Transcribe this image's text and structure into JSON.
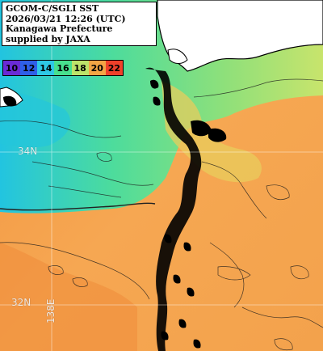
{
  "info": {
    "line1": "GCOM-C/SGLI SST",
    "line2": "2026/03/21 12:26 (UTC)",
    "line3": "Kanagawa Prefecture",
    "line4": "supplied by JAXA"
  },
  "legend": {
    "items": [
      {
        "label": "10",
        "color": "#6a2bd6"
      },
      {
        "label": "12",
        "color": "#2f5fe8"
      },
      {
        "label": "14",
        "color": "#2ec8e6"
      },
      {
        "label": "16",
        "color": "#48e08e"
      },
      {
        "label": "18",
        "color": "#bce36a"
      },
      {
        "label": "20",
        "color": "#f4a545"
      },
      {
        "label": "22",
        "color": "#f0402a"
      }
    ]
  },
  "gridlines": {
    "lat_1": "34N",
    "lat_2": "32N",
    "lon_1": "138E"
  },
  "colors": {
    "land": "#ffffff",
    "coast": "#000000",
    "warm_sea": "#f4a04e",
    "cool_sea": "#9fe070",
    "cold_sea": "#35d4b4"
  }
}
